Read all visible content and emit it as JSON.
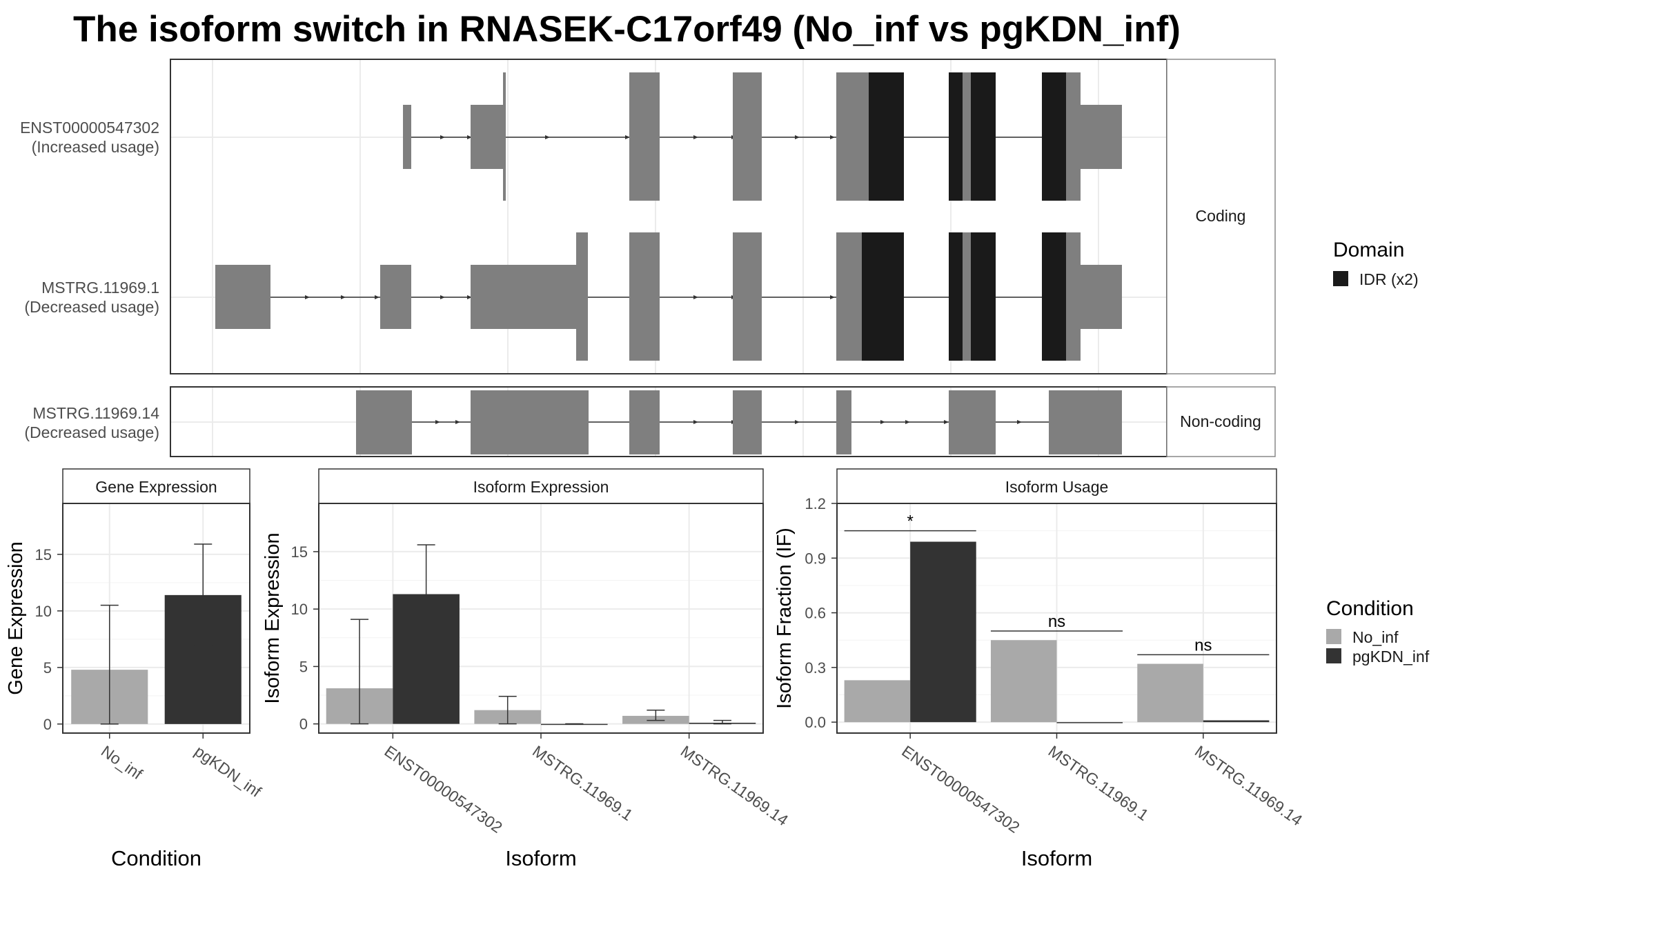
{
  "title": "The isoform switch in RNASEK-C17orf49 (No_inf vs pgKDN_inf)",
  "colors": {
    "exon": "#7f7f7f",
    "idr": "#1a1a1a",
    "no_inf": "#a9a9a9",
    "pgkdn_inf": "#333333",
    "grid": "#ebebeb",
    "strip_bg": "#ffffff",
    "panel_border": "#333333"
  },
  "structure": {
    "coding_strip": "Coding",
    "noncoding_strip": "Non-coding",
    "transcripts": [
      {
        "id": "ENST00000547302",
        "usage": "(Increased usage)",
        "group": "Coding"
      },
      {
        "id": "MSTRG.11969.1",
        "usage": "(Decreased usage)",
        "group": "Coding"
      },
      {
        "id": "MSTRG.11969.14",
        "usage": "(Decreased usage)",
        "group": "Non-coding"
      }
    ]
  },
  "legends": {
    "domain": {
      "title": "Domain",
      "items": [
        {
          "label": "IDR (x2)",
          "color": "#1a1a1a"
        }
      ]
    },
    "condition": {
      "title": "Condition",
      "items": [
        {
          "label": "No_inf",
          "color": "#a9a9a9"
        },
        {
          "label": "pgKDN_inf",
          "color": "#333333"
        }
      ]
    }
  },
  "chart_data": [
    {
      "type": "bar",
      "panel": "Gene Expression",
      "xlabel": "Condition",
      "ylabel": "Gene Expression",
      "ylim": [
        -0.8,
        19.5
      ],
      "yticks": [
        0,
        5,
        10,
        15
      ],
      "categories": [
        "No_inf",
        "pgKDN_inf"
      ],
      "series": [
        {
          "name": "No_inf",
          "values": [
            4.8,
            null
          ],
          "err_low": [
            0,
            null
          ],
          "err_high": [
            10.5,
            null
          ]
        },
        {
          "name": "pgKDN_inf",
          "values": [
            null,
            11.4
          ],
          "err_low": [
            null,
            6.9
          ],
          "err_high": [
            null,
            15.9
          ]
        }
      ]
    },
    {
      "type": "bar",
      "panel": "Isoform Expression",
      "xlabel": "Isoform",
      "ylabel": "Isoform Expression",
      "ylim": [
        -0.8,
        19.2
      ],
      "yticks": [
        0,
        5,
        10,
        15
      ],
      "categories": [
        "ENST00000547302",
        "MSTRG.11969.1",
        "MSTRG.11969.14"
      ],
      "series": [
        {
          "name": "No_inf",
          "values": [
            3.1,
            1.2,
            0.7
          ],
          "err_low": [
            0,
            0,
            0.3
          ],
          "err_high": [
            9.1,
            2.4,
            1.2
          ]
        },
        {
          "name": "pgKDN_inf",
          "values": [
            11.3,
            0.0,
            0.1
          ],
          "err_low": [
            6.9,
            0.0,
            0.0
          ],
          "err_high": [
            15.6,
            0.0,
            0.3
          ]
        }
      ]
    },
    {
      "type": "bar",
      "panel": "Isoform Usage",
      "xlabel": "Isoform",
      "ylabel": "Isoform Fraction (IF)",
      "ylim": [
        -0.06,
        1.2
      ],
      "yticks": [
        "0.0",
        "0.3",
        "0.6",
        "0.9",
        "1.2"
      ],
      "categories": [
        "ENST00000547302",
        "MSTRG.11969.1",
        "MSTRG.11969.14"
      ],
      "series": [
        {
          "name": "No_inf",
          "values": [
            0.23,
            0.45,
            0.32
          ]
        },
        {
          "name": "pgKDN_inf",
          "values": [
            0.99,
            0.0,
            0.01
          ]
        }
      ],
      "significance": [
        {
          "label": "*",
          "y": 1.05
        },
        {
          "label": "ns",
          "y": 0.5
        },
        {
          "label": "ns",
          "y": 0.37
        }
      ]
    }
  ]
}
